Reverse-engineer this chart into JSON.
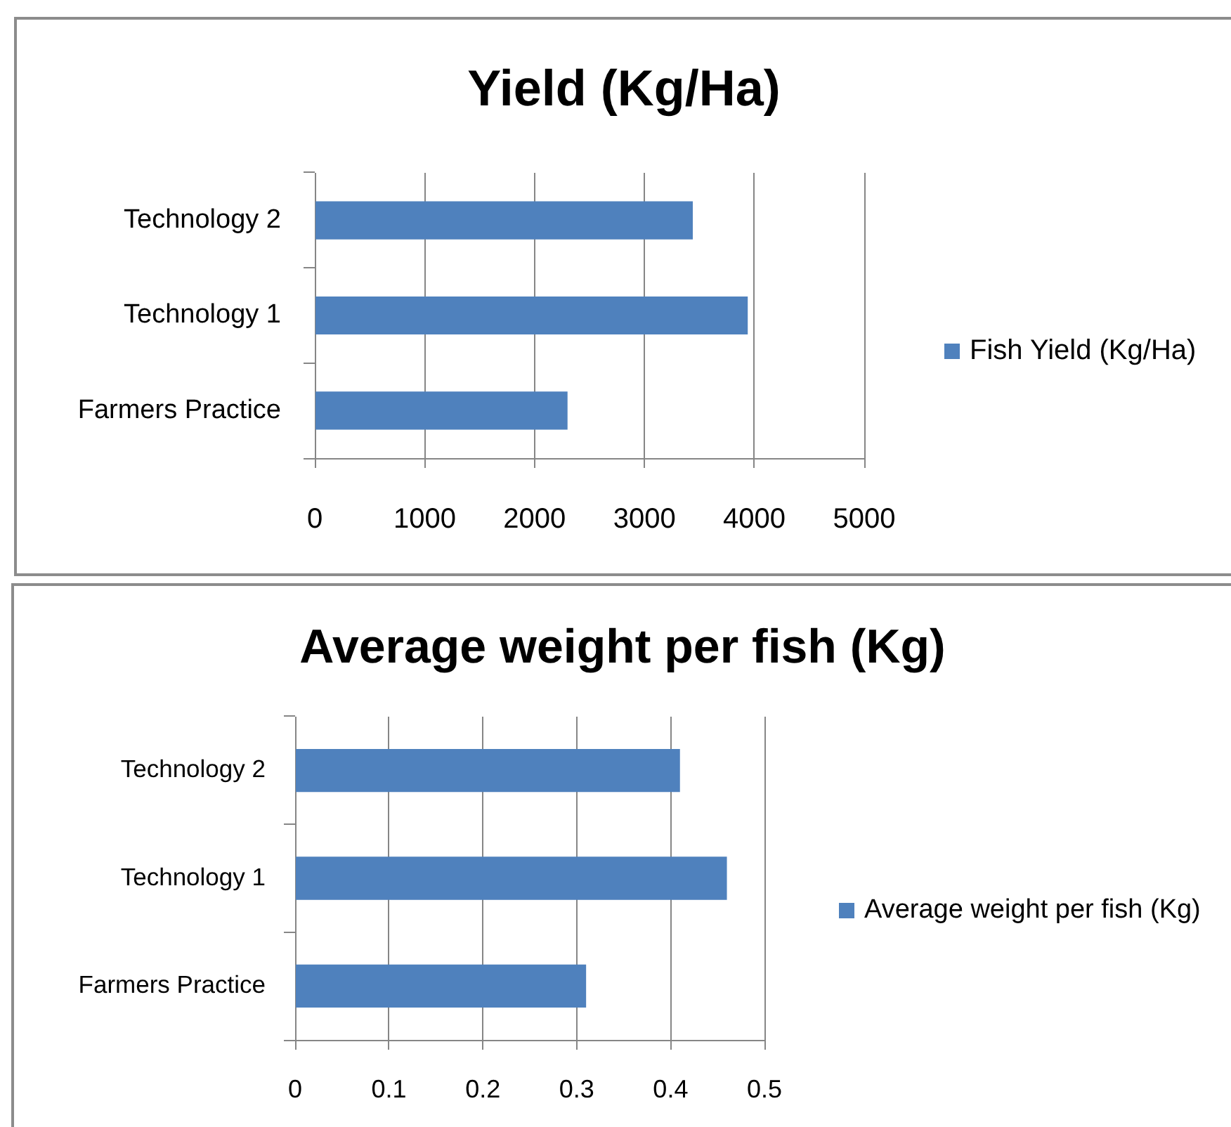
{
  "chart_data": [
    {
      "type": "bar",
      "orientation": "horizontal",
      "title": "Yield (Kg/Ha)",
      "categories": [
        "Technology 2",
        "Technology 1",
        "Farmers Practice"
      ],
      "series": [
        {
          "name": "Fish Yield (Kg/Ha)",
          "color": "#4f81bd",
          "values": [
            3440,
            3940,
            2300
          ]
        }
      ],
      "xlim": [
        0,
        5000
      ],
      "xticks": [
        0,
        1000,
        2000,
        3000,
        4000,
        5000
      ],
      "grid": "x",
      "legend": "right"
    },
    {
      "type": "bar",
      "orientation": "horizontal",
      "title": "Average weight per fish (Kg)",
      "categories": [
        "Technology 2",
        "Technology 1",
        "Farmers Practice"
      ],
      "series": [
        {
          "name": "Average weight per fish (Kg)",
          "color": "#4f81bd",
          "values": [
            0.41,
            0.46,
            0.31
          ]
        }
      ],
      "xlim": [
        0,
        0.5
      ],
      "xticks": [
        0,
        0.1,
        0.2,
        0.3,
        0.4,
        0.5
      ],
      "grid": "x",
      "legend": "right"
    }
  ]
}
